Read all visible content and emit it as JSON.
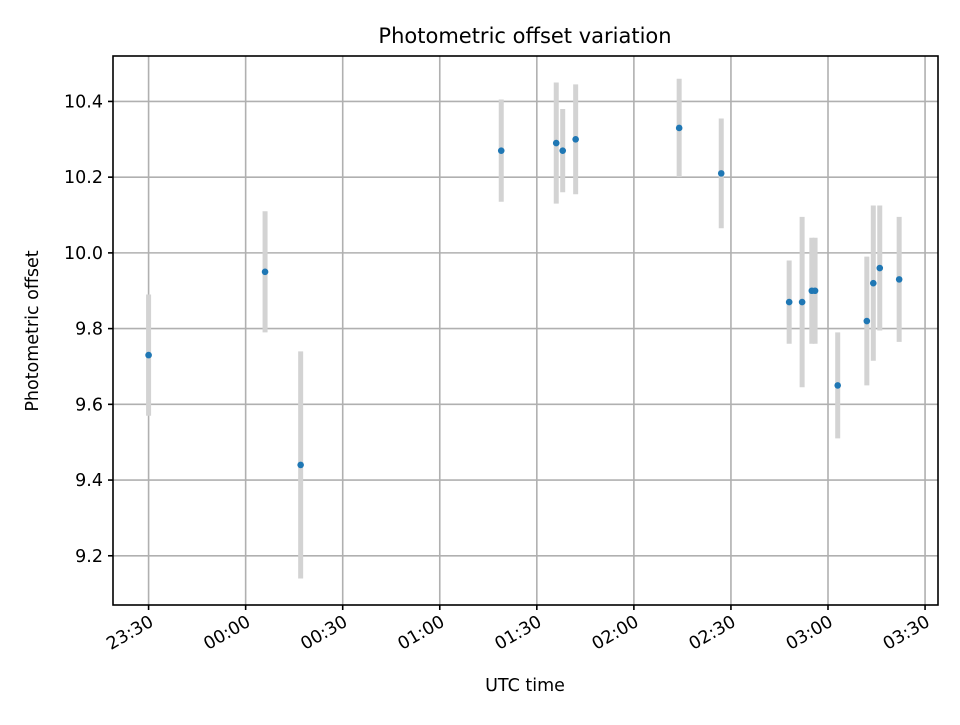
{
  "chart_data": {
    "type": "scatter",
    "title": "Photometric offset variation",
    "xlabel": "UTC time",
    "ylabel": "Photometric offset",
    "x_axis": {
      "kind": "time",
      "xlim": [
        "23:19",
        "03:34"
      ],
      "ticks": [
        "23:30",
        "00:00",
        "00:30",
        "01:00",
        "01:30",
        "02:00",
        "02:30",
        "03:00",
        "03:30"
      ]
    },
    "y_axis": {
      "ylim": [
        9.07,
        10.52
      ],
      "ticks": [
        9.2,
        9.4,
        9.6,
        9.8,
        10.0,
        10.2,
        10.4
      ],
      "tick_labels": [
        "9.2",
        "9.4",
        "9.6",
        "9.8",
        "10.0",
        "10.2",
        "10.4"
      ]
    },
    "grid": true,
    "colors": {
      "point": "#1f77b4",
      "errorbar": "#d3d3d3"
    },
    "series": [
      {
        "points": [
          {
            "x": "23:30",
            "y": 9.73,
            "err": 0.16
          },
          {
            "x": "00:06",
            "y": 9.95,
            "err": 0.16
          },
          {
            "x": "00:17",
            "y": 9.44,
            "err": 0.3
          },
          {
            "x": "01:19",
            "y": 10.27,
            "err": 0.135
          },
          {
            "x": "01:36",
            "y": 10.29,
            "err": 0.16
          },
          {
            "x": "01:38",
            "y": 10.27,
            "err": 0.11
          },
          {
            "x": "01:42",
            "y": 10.3,
            "err": 0.145
          },
          {
            "x": "02:14",
            "y": 10.33,
            "err": 0.13
          },
          {
            "x": "02:27",
            "y": 10.21,
            "err": 0.145
          },
          {
            "x": "02:48",
            "y": 9.87,
            "err": 0.11
          },
          {
            "x": "02:52",
            "y": 9.87,
            "err": 0.225
          },
          {
            "x": "02:55",
            "y": 9.9,
            "err": 0.14
          },
          {
            "x": "02:56",
            "y": 9.9,
            "err": 0.14
          },
          {
            "x": "03:03",
            "y": 9.65,
            "err": 0.14
          },
          {
            "x": "03:12",
            "y": 9.82,
            "err": 0.17
          },
          {
            "x": "03:14",
            "y": 9.92,
            "err": 0.205
          },
          {
            "x": "03:16",
            "y": 9.96,
            "err": 0.165
          },
          {
            "x": "03:22",
            "y": 9.93,
            "err": 0.165
          }
        ]
      }
    ]
  }
}
